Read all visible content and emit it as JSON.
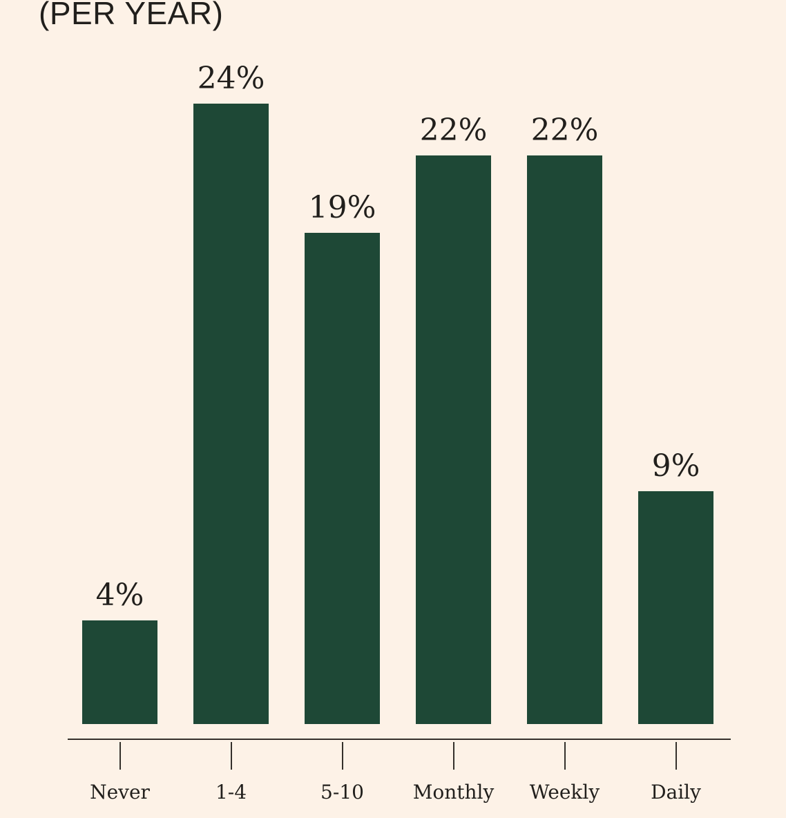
{
  "header": {
    "title": "(PER YEAR)"
  },
  "chart_data": {
    "type": "bar",
    "title": "(PER YEAR)",
    "categories": [
      "Never",
      "1-4",
      "5-10",
      "Monthly",
      "Weekly",
      "Daily"
    ],
    "values": [
      4,
      24,
      19,
      22,
      22,
      9
    ],
    "value_labels": [
      "4%",
      "24%",
      "19%",
      "22%",
      "22%",
      "9%"
    ],
    "unit": "percent",
    "xlabel": "",
    "ylabel": "",
    "ylim": [
      0,
      28
    ],
    "grid": false,
    "legend": "none",
    "bar_orientation": "vertical"
  },
  "theme": {
    "background": "#fdf2e7",
    "bar_color": "#1e4836",
    "text_color": "#211f1c",
    "axis_color": "#34302b"
  }
}
